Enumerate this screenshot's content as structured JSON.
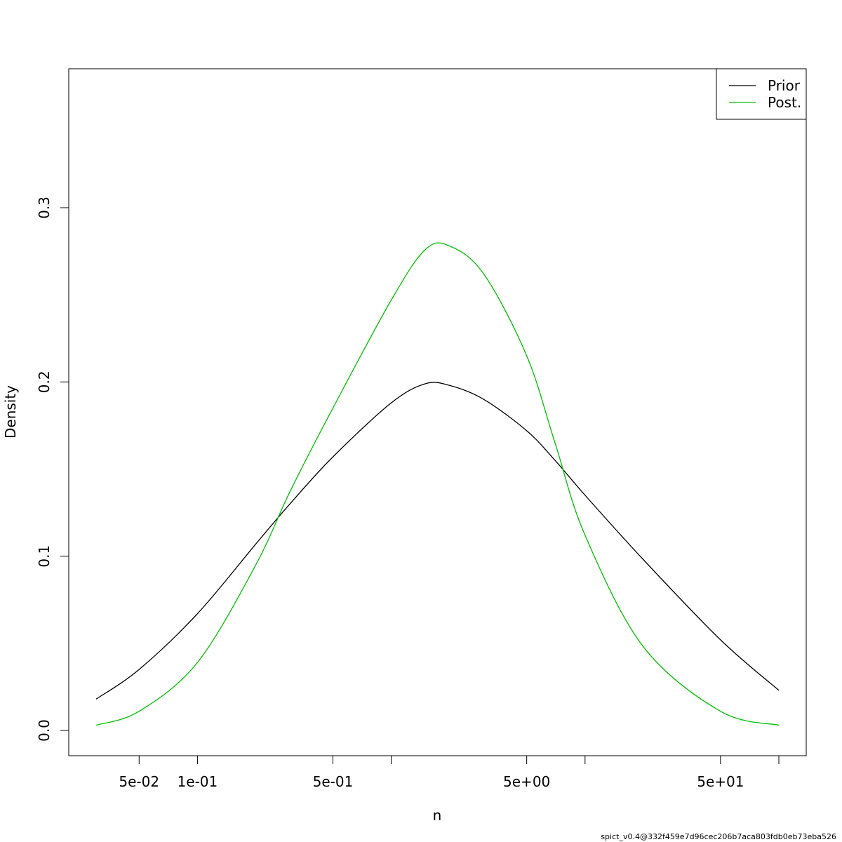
{
  "chart_data": {
    "type": "line",
    "title": "",
    "xlabel": "n",
    "ylabel": "Density",
    "x_scale": "log",
    "xlim": [
      0.025,
      120
    ],
    "ylim": [
      0,
      0.38
    ],
    "x_ticks": [
      0.05,
      0.1,
      0.5,
      1,
      5,
      10,
      50,
      100
    ],
    "x_tick_labels": [
      "5e-02",
      "1e-01",
      "5e-01",
      "",
      "5e+00",
      "",
      "5e+01",
      ""
    ],
    "y_ticks": [
      0.0,
      0.1,
      0.2,
      0.3
    ],
    "y_tick_labels": [
      "0.0",
      "0.1",
      "0.2",
      "0.3"
    ],
    "grid": false,
    "legend": {
      "position": "top-right",
      "entries": [
        "Prior",
        "Post."
      ]
    },
    "series": [
      {
        "name": "Prior",
        "color": "#000000",
        "x": [
          0.03,
          0.05,
          0.1,
          0.2,
          0.3,
          0.5,
          1.0,
          1.5,
          2.0,
          3.0,
          5.0,
          7.0,
          10,
          20,
          50,
          100
        ],
        "y": [
          0.018,
          0.035,
          0.067,
          0.107,
          0.13,
          0.157,
          0.188,
          0.199,
          0.198,
          0.19,
          0.172,
          0.155,
          0.135,
          0.098,
          0.052,
          0.023
        ]
      },
      {
        "name": "Post.",
        "color": "#00c000",
        "x": [
          0.03,
          0.05,
          0.1,
          0.2,
          0.3,
          0.5,
          1.0,
          1.5,
          2.0,
          3.0,
          5.0,
          7.0,
          10,
          20,
          50,
          100
        ],
        "y": [
          0.003,
          0.011,
          0.039,
          0.095,
          0.137,
          0.185,
          0.247,
          0.276,
          0.278,
          0.262,
          0.215,
          0.165,
          0.112,
          0.048,
          0.011,
          0.003
        ]
      }
    ]
  },
  "footer": {
    "signature": "spict_v0.4@332f459e7d96cec206b7aca803fdb0eb73eba526"
  }
}
